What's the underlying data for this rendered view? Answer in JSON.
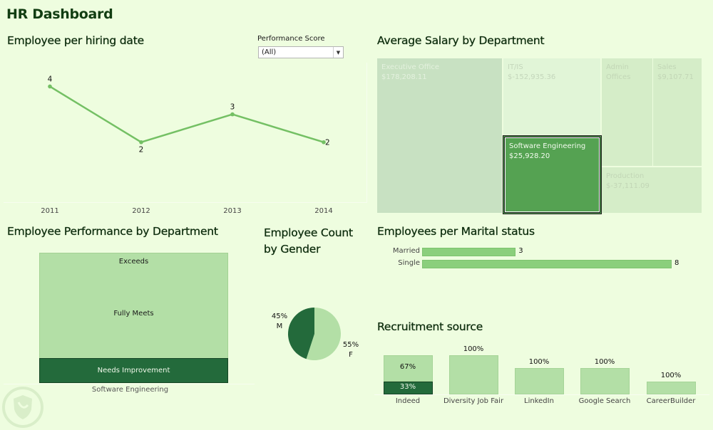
{
  "dashboard_title": "HR Dashboard",
  "filter": {
    "label": "Performance Score",
    "selected": "(All)",
    "arrow_icon": "dropdown-arrow"
  },
  "colors": {
    "background": "#eefddf",
    "title": "#123d12",
    "line": "#74c064",
    "dark_green": "#236a3b",
    "light_green": "#b3dfa6",
    "bar_green": "#8bcf7c",
    "highlight_green": "#55a252"
  },
  "line_chart": {
    "title": "Employee per hiring date",
    "chart_data": {
      "type": "line",
      "title": "Employee per hiring date",
      "x": [
        "2011",
        "2012",
        "2013",
        "2014"
      ],
      "values": [
        4,
        2,
        3,
        2
      ],
      "labels": [
        "4",
        "2",
        "3",
        "2"
      ],
      "xlabel": "",
      "ylabel": "",
      "ylim": [
        0,
        4.6
      ],
      "grid": false
    }
  },
  "treemap": {
    "title": "Average Salary by Department",
    "chart_data": {
      "type": "treemap",
      "title": "Average Salary by Department",
      "items": [
        {
          "name": "Executive Office",
          "value_label": "$178,208.11",
          "value": 178208.11
        },
        {
          "name": "IT/IS",
          "value_label": "$-152,935.36",
          "value": -152935.36
        },
        {
          "name": "Software Engineering",
          "value_label": "$25,928.20",
          "value": 25928.2,
          "selected": true
        },
        {
          "name": "Admin Offices",
          "name_lines": [
            "Admin",
            "Offices"
          ],
          "value_label": "",
          "value": null
        },
        {
          "name": "Sales",
          "value_label": "$9,107.71",
          "value": 9107.71
        },
        {
          "name": "Production",
          "value_label": "$-37,111.09",
          "value": -37111.09
        }
      ]
    }
  },
  "performance": {
    "title": "Employee Performance by Department",
    "chart_data": {
      "type": "bar",
      "stacked": true,
      "categories": [
        "Software Engineering"
      ],
      "series": [
        {
          "name": "Exceeds",
          "values": [
            1
          ]
        },
        {
          "name": "Fully Meets",
          "values": [
            4
          ]
        },
        {
          "name": "Needs Improvement",
          "values": [
            1
          ]
        }
      ]
    }
  },
  "gender": {
    "title_line1": "Employee Count",
    "title_line2": "by Gender",
    "chart_data": {
      "type": "pie",
      "title": "Employee Count by Gender",
      "slices": [
        {
          "name": "M",
          "pct_label": "45%",
          "value": 45
        },
        {
          "name": "F",
          "pct_label": "55%",
          "value": 55
        }
      ]
    }
  },
  "marital": {
    "title": "Employees per Marital status",
    "chart_data": {
      "type": "bar",
      "orientation": "horizontal",
      "categories": [
        "Married",
        "Single"
      ],
      "values": [
        3,
        8
      ],
      "labels": [
        "3",
        "8"
      ]
    }
  },
  "recruitment": {
    "title": "Recruitment source",
    "chart_data": {
      "type": "bar",
      "stacked": true,
      "categories": [
        "Indeed",
        "Diversity Job Fair",
        "LinkedIn",
        "Google Search",
        "CareerBuilder"
      ],
      "relative_heights": [
        3,
        3,
        2,
        2,
        1
      ],
      "segments": [
        [
          {
            "label": "67%",
            "share": 0.67,
            "shade": "light"
          },
          {
            "label": "33%",
            "share": 0.33,
            "shade": "dark"
          }
        ],
        [
          {
            "label": "100%",
            "share": 1,
            "shade": "light"
          }
        ],
        [
          {
            "label": "100%",
            "share": 1,
            "shade": "light"
          }
        ],
        [
          {
            "label": "100%",
            "share": 1,
            "shade": "light"
          }
        ],
        [
          {
            "label": "100%",
            "share": 1,
            "shade": "light"
          }
        ]
      ]
    }
  }
}
